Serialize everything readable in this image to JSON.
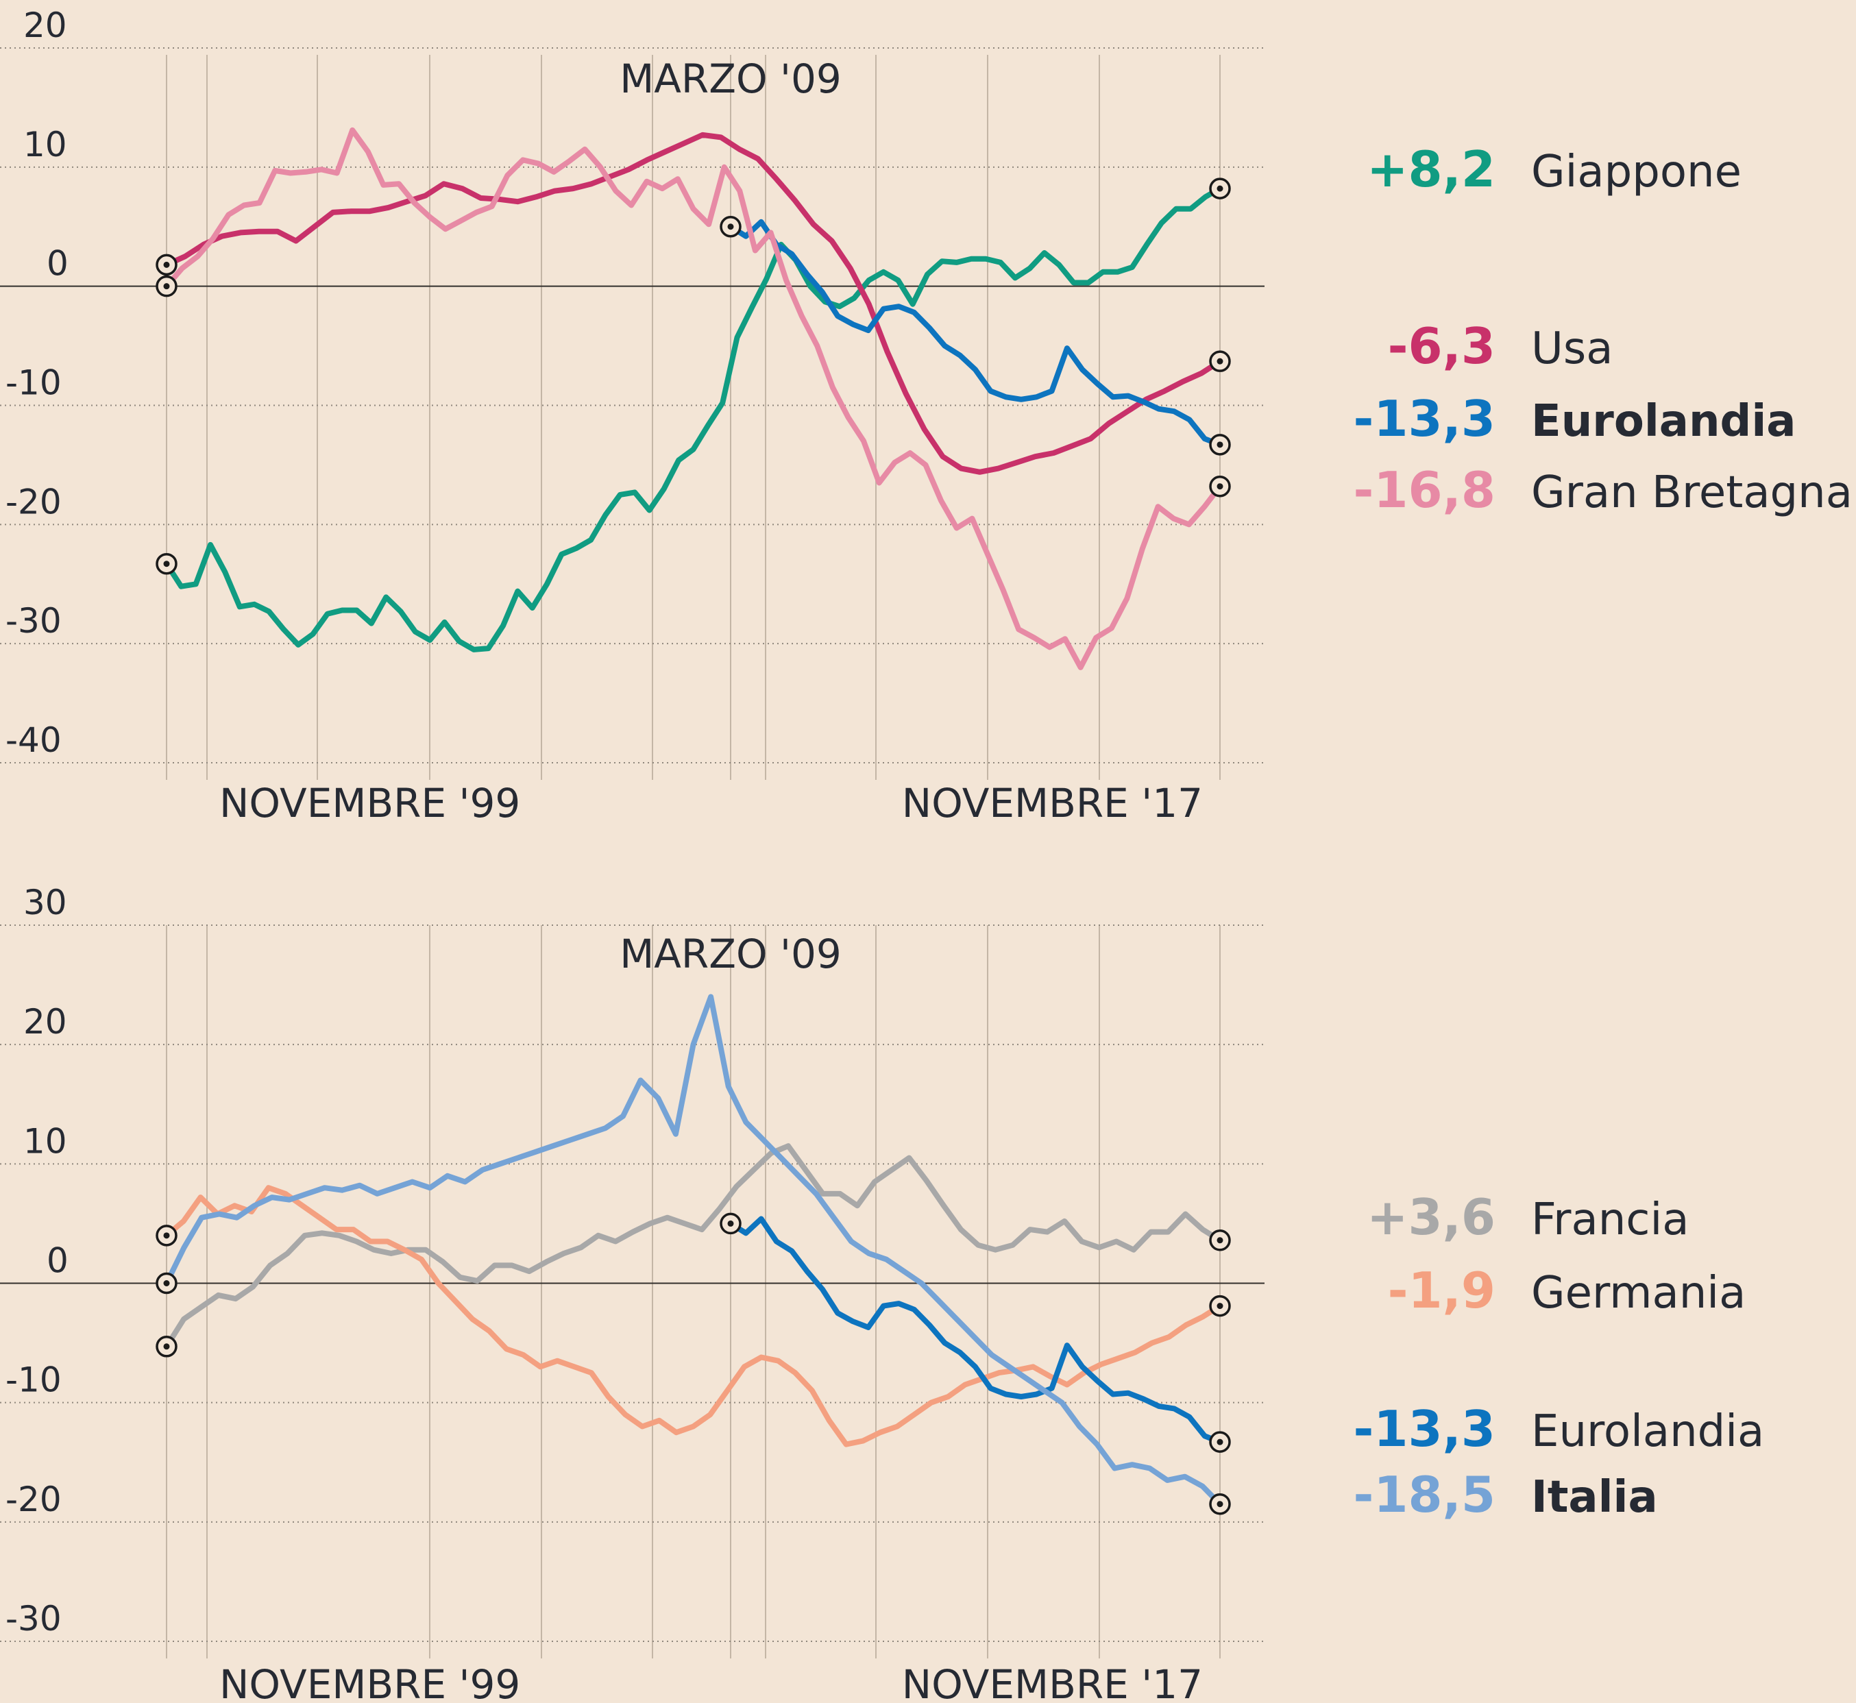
{
  "chart_data": [
    {
      "type": "line",
      "ylim": [
        -40,
        20
      ],
      "yticks": [
        20,
        10,
        0,
        -10,
        -20,
        -30,
        -40
      ],
      "x_labels": [
        "NOVEMBRE '99",
        "NOVEMBRE '17"
      ],
      "annotation": "MARZO '09",
      "grid": "horizontal dotted",
      "series": [
        {
          "name": "Giappone",
          "end_label": "+8,2",
          "color": "#109c82",
          "bold": false,
          "values": [
            -23.3,
            -25.2,
            -25,
            -21.7,
            -24,
            -26.9,
            -26.7,
            -27.3,
            -28.8,
            -30.1,
            -29.2,
            -27.5,
            -27.2,
            -27.2,
            -28.3,
            -26.1,
            -27.3,
            -29,
            -29.7,
            -28.2,
            -29.8,
            -30.5,
            -30.4,
            -28.5,
            -25.6,
            -27,
            -25,
            -22.5,
            -22,
            -21.3,
            -19.2,
            -17.5,
            -17.3,
            -18.8,
            -17,
            -14.6,
            -13.7,
            -11.7,
            -9.8,
            -4.3,
            -1.8,
            0.6,
            3.5,
            2.2,
            0,
            -1.3,
            -1.7,
            -1,
            0.5,
            1.2,
            0.5,
            -1.5,
            1,
            2.1,
            2,
            2.3,
            2.3,
            2,
            0.7,
            1.5,
            2.8,
            1.8,
            0.3,
            0.3,
            1.2,
            1.2,
            1.6,
            3.5,
            5.3,
            6.5,
            6.5,
            7.5,
            8.2
          ]
        },
        {
          "name": "Usa",
          "end_label": "-6,3",
          "color": "#c8316a",
          "bold": false,
          "values": [
            1.8,
            2.5,
            3.5,
            4.2,
            4.5,
            4.6,
            4.6,
            3.8,
            5,
            6.2,
            6.3,
            6.3,
            6.6,
            7.1,
            7.6,
            8.6,
            8.2,
            7.4,
            7.3,
            7.1,
            7.5,
            8,
            8.2,
            8.6,
            9.2,
            9.8,
            10.6,
            11.3,
            12,
            12.7,
            12.5,
            11.5,
            10.7,
            9,
            7.2,
            5.2,
            3.8,
            1.5,
            -1.5,
            -5.5,
            -9,
            -12,
            -14.3,
            -15.3,
            -15.6,
            -15.3,
            -14.8,
            -14.3,
            -14,
            -13.4,
            -12.8,
            -11.5,
            -10.5,
            -9.5,
            -8.8,
            -8,
            -7.3,
            -6.3
          ]
        },
        {
          "name": "Eurolandia",
          "end_label": "-13,3",
          "color": "#0d74bf",
          "bold": true,
          "values": [
            5,
            4.2,
            5.4,
            3.5,
            2.7,
            1,
            -0.5,
            -2.5,
            -3.2,
            -3.7,
            -1.9,
            -1.7,
            -2.2,
            -3.5,
            -5,
            -5.8,
            -7,
            -8.8,
            -9.3,
            -9.5,
            -9.3,
            -8.8,
            -5.2,
            -7,
            -8.2,
            -9.3,
            -9.2,
            -9.7,
            -10.3,
            -10.5,
            -11.2,
            -12.8,
            -13.3
          ]
        },
        {
          "name": "Gran Bretagna",
          "end_label": "-16,8",
          "color": "#e78aa5",
          "bold": false,
          "values": [
            0,
            1.5,
            2.5,
            4,
            6,
            6.8,
            7,
            9.7,
            9.5,
            9.6,
            9.8,
            9.5,
            13.1,
            11.3,
            8.5,
            8.6,
            7,
            5.8,
            4.8,
            5.5,
            6.2,
            6.7,
            9.3,
            10.6,
            10.3,
            9.6,
            10.5,
            11.5,
            10,
            8,
            6.8,
            8.8,
            8.2,
            9,
            6.5,
            5.2,
            10,
            8,
            3,
            4.5,
            0.5,
            -2.5,
            -5,
            -8.5,
            -11,
            -13,
            -16.5,
            -14.8,
            -14,
            -15,
            -18,
            -20.3,
            -19.5,
            -22.5,
            -25.5,
            -28.8,
            -29.5,
            -30.3,
            -29.6,
            -32,
            -29.5,
            -28.7,
            -26.2,
            -22,
            -18.5,
            -19.5,
            -20,
            -18.5,
            -16.8
          ]
        }
      ]
    },
    {
      "type": "line",
      "ylim": [
        -30,
        30
      ],
      "yticks": [
        30,
        20,
        10,
        0,
        -10,
        -20,
        -30
      ],
      "x_labels": [
        "NOVEMBRE '99",
        "NOVEMBRE '17"
      ],
      "annotation": "MARZO '09",
      "grid": "horizontal dotted",
      "series": [
        {
          "name": "Francia",
          "end_label": "+3,6",
          "color": "#a8a8a8",
          "bold": false,
          "values": [
            -5.3,
            -3,
            -2,
            -1,
            -1.3,
            -0.3,
            1.5,
            2.5,
            4,
            4.2,
            4,
            3.5,
            2.8,
            2.5,
            2.8,
            2.8,
            1.8,
            0.5,
            0.2,
            1.5,
            1.5,
            1,
            1.8,
            2.5,
            3,
            4,
            3.5,
            4.3,
            5,
            5.5,
            5,
            4.5,
            6.2,
            8.1,
            9.5,
            10.9,
            11.5,
            9.5,
            7.5,
            7.5,
            6.5,
            8.5,
            9.5,
            10.5,
            8.6,
            6.5,
            4.5,
            3.2,
            2.8,
            3.2,
            4.5,
            4.3,
            5.2,
            3.5,
            3,
            3.5,
            2.8,
            4.3,
            4.3,
            5.8,
            4.5,
            3.6
          ]
        },
        {
          "name": "Germania",
          "end_label": "-1,9",
          "color": "#f4a080",
          "bold": false,
          "values": [
            4,
            5.2,
            7.2,
            5.8,
            6.5,
            6,
            8,
            7.5,
            6.5,
            5.5,
            4.5,
            4.5,
            3.5,
            3.5,
            2.8,
            2,
            0,
            -1.5,
            -3,
            -4,
            -5.5,
            -6,
            -7,
            -6.5,
            -7,
            -7.5,
            -9.5,
            -11,
            -12,
            -11.5,
            -12.5,
            -12,
            -11,
            -9,
            -7,
            -6.2,
            -6.5,
            -7.5,
            -9,
            -11.5,
            -13.5,
            -13.2,
            -12.5,
            -12,
            -11,
            -10,
            -9.5,
            -8.5,
            -8,
            -7.5,
            -7.3,
            -7,
            -7.8,
            -8.5,
            -7.5,
            -6.8,
            -6.3,
            -5.8,
            -5,
            -4.5,
            -3.5,
            -2.8,
            -1.9
          ]
        },
        {
          "name": "Eurolandia",
          "end_label": "-13,3",
          "color": "#0d74bf",
          "bold": false,
          "values": [
            5,
            4.2,
            5.4,
            3.5,
            2.7,
            1,
            -0.5,
            -2.5,
            -3.2,
            -3.7,
            -1.9,
            -1.7,
            -2.2,
            -3.5,
            -5,
            -5.8,
            -7,
            -8.8,
            -9.3,
            -9.5,
            -9.3,
            -8.8,
            -5.2,
            -7,
            -8.2,
            -9.3,
            -9.2,
            -9.7,
            -10.3,
            -10.5,
            -11.2,
            -12.8,
            -13.3
          ]
        },
        {
          "name": "Italia",
          "end_label": "-18,5",
          "color": "#75a3d6",
          "bold": true,
          "values": [
            0,
            3,
            5.5,
            5.8,
            5.5,
            6.5,
            7.2,
            7,
            7.5,
            8,
            7.8,
            8.2,
            7.5,
            8,
            8.5,
            8,
            9,
            8.5,
            9.5,
            10,
            10.5,
            11,
            11.5,
            12,
            12.5,
            13,
            14,
            17,
            15.5,
            12.5,
            20,
            24,
            16.5,
            13.5,
            12,
            10.5,
            9,
            7.5,
            5.5,
            3.5,
            2.5,
            2,
            1,
            0,
            -1.5,
            -3,
            -4.5,
            -6,
            -7,
            -8,
            -9,
            -10,
            -12,
            -13.5,
            -15.5,
            -15.2,
            -15.5,
            -16.5,
            -16.2,
            -17,
            -18.5
          ]
        }
      ]
    }
  ]
}
